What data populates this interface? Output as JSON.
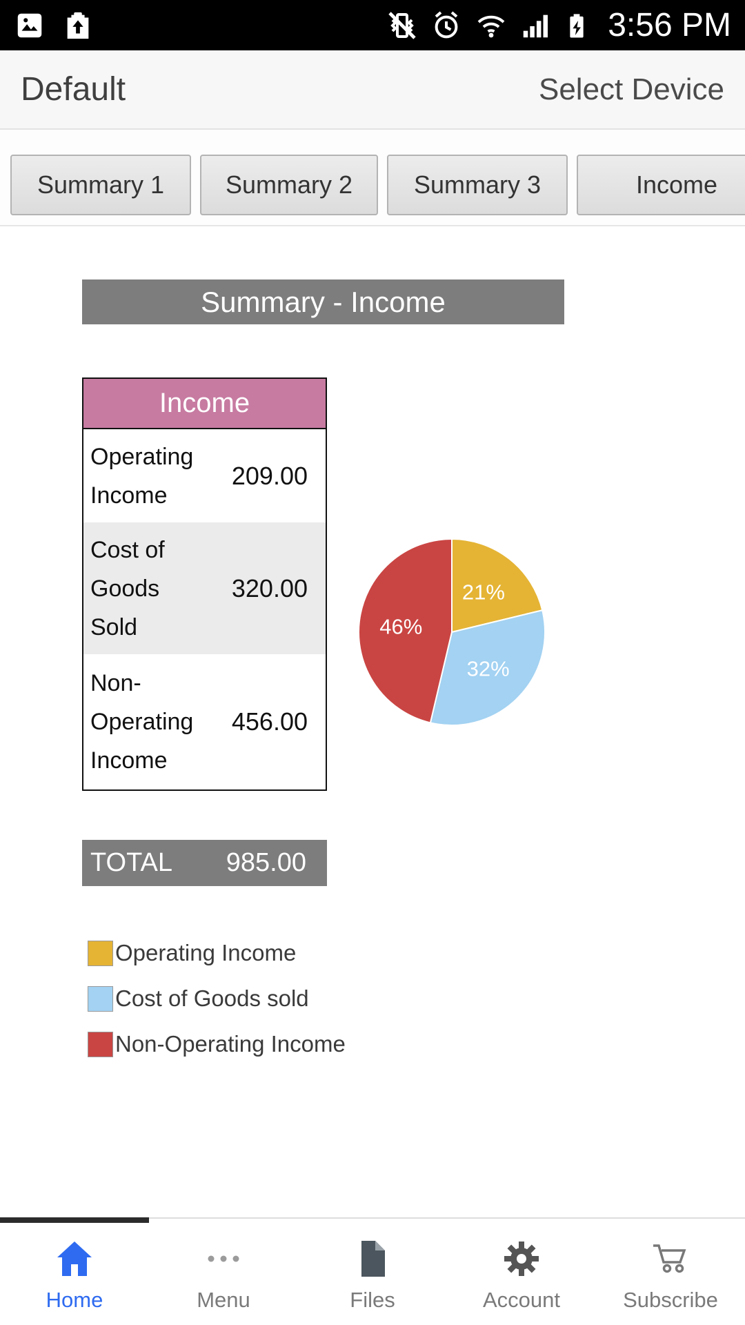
{
  "status_bar": {
    "time": "3:56 PM"
  },
  "header": {
    "title": "Default",
    "action": "Select Device"
  },
  "tabs": {
    "items": [
      {
        "label": "Summary 1"
      },
      {
        "label": "Summary 2"
      },
      {
        "label": "Summary 3"
      },
      {
        "label": "Income"
      }
    ]
  },
  "content": {
    "title": "Summary - Income"
  },
  "table": {
    "header": "Income",
    "rows": [
      {
        "label": "Operating Income",
        "value": "209.00"
      },
      {
        "label": "Cost of Goods Sold",
        "value": "320.00"
      },
      {
        "label": "Non-Operating Income",
        "value": "456.00"
      }
    ],
    "total_label": "TOTAL",
    "total_value": "985.00"
  },
  "chart_data": {
    "type": "pie",
    "labels": [
      "Operating Income",
      "Cost of Goods sold",
      "Non-Operating Income"
    ],
    "values": [
      209.0,
      320.0,
      456.0
    ],
    "percent_labels": [
      "21%",
      "32%",
      "46%"
    ],
    "colors": [
      "#e5b435",
      "#a3d2f2",
      "#c94543"
    ],
    "total": 985.0,
    "title": "Summary - Income",
    "legend_position": "bottom-left"
  },
  "legend": {
    "items": [
      {
        "label": "Operating Income"
      },
      {
        "label": "Cost of Goods sold"
      },
      {
        "label": "Non-Operating Income"
      }
    ]
  },
  "nav": {
    "items": [
      {
        "label": "Home"
      },
      {
        "label": "Menu"
      },
      {
        "label": "Files"
      },
      {
        "label": "Account"
      },
      {
        "label": "Subscribe"
      }
    ]
  },
  "colors": {
    "table_header_bg": "#c77ba1",
    "bar_bg": "#7d7d7d",
    "accent_blue": "#2e6bf0",
    "row_alt_bg": "#ebebeb"
  }
}
